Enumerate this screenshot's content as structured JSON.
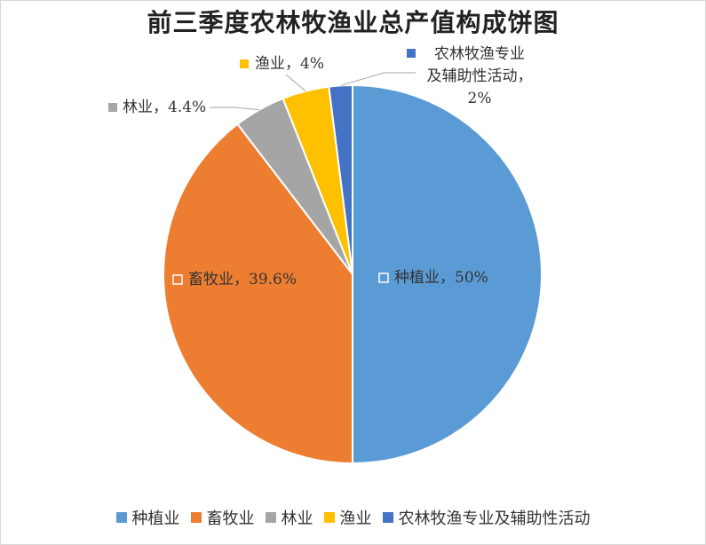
{
  "chart_data": {
    "type": "pie",
    "title": "前三季度农林牧渔业总产值构成饼图",
    "categories": [
      "种植业",
      "畜牧业",
      "林业",
      "渔业",
      "农林牧渔专业及辅助性活动"
    ],
    "values": [
      50,
      39.6,
      4.4,
      4,
      2
    ],
    "unit": "%",
    "colors": [
      "#5b9bd5",
      "#ed7d31",
      "#a5a5a5",
      "#ffc000",
      "#4472c4"
    ],
    "data_labels": [
      "种植业，50%",
      "畜牧业，39.6%",
      "林业，4.4%",
      "渔业，4%",
      "农林牧渔专业及辅助性活动，2%"
    ],
    "legend": [
      "种植业",
      "畜牧业",
      "林业",
      "渔业",
      "农林牧渔专业及辅助性活动"
    ],
    "legend_position": "bottom"
  }
}
